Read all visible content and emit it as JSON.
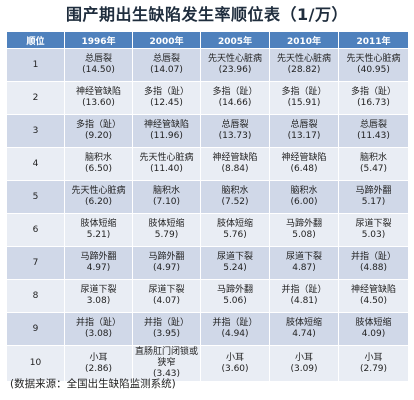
{
  "title": "围产期出生缺陷发生率顺位表（1/万）",
  "headers": [
    "顺位",
    "1996年",
    "2000年",
    "2005年",
    "2010年",
    "2011年"
  ],
  "rows": [
    {
      "rank": "1",
      "cells": [
        {
          "name": "总唇裂",
          "value": "(14.50)"
        },
        {
          "name": "总唇裂",
          "value": "(14.07)"
        },
        {
          "name": "先天性心脏病",
          "value": "(23.96)"
        },
        {
          "name": "先天性心脏病",
          "value": "(28.82)"
        },
        {
          "name": "先天性心脏病",
          "value": "(40.95)"
        }
      ]
    },
    {
      "rank": "2",
      "cells": [
        {
          "name": "神经管缺陷",
          "value": "(13.60)"
        },
        {
          "name": "多指（趾）",
          "value": "(12.45)"
        },
        {
          "name": "多指（趾）",
          "value": "(14.66)"
        },
        {
          "name": "多指（趾）",
          "value": "(15.91)"
        },
        {
          "name": "多指（趾）",
          "value": "(16.73)"
        }
      ]
    },
    {
      "rank": "3",
      "cells": [
        {
          "name": "多指（趾）",
          "value": "(9.20)"
        },
        {
          "name": "神经管缺陷",
          "value": "(11.96)"
        },
        {
          "name": "总唇裂",
          "value": "(13.73)"
        },
        {
          "name": "总唇裂",
          "value": "(13.17)"
        },
        {
          "name": "总唇裂",
          "value": "(11.43)"
        }
      ]
    },
    {
      "rank": "4",
      "cells": [
        {
          "name": "脑积水",
          "value": "(6.50)"
        },
        {
          "name": "先天性心脏病",
          "value": "(11.40)"
        },
        {
          "name": "神经管缺陷",
          "value": "(8.84)"
        },
        {
          "name": "神经管缺陷",
          "value": "(6.48)"
        },
        {
          "name": "脑积水",
          "value": "(5.47)"
        }
      ]
    },
    {
      "rank": "5",
      "cells": [
        {
          "name": "先天性心脏病",
          "value": "(6.20)"
        },
        {
          "name": "脑积水",
          "value": "(7.10)"
        },
        {
          "name": "脑积水",
          "value": "(7.52)"
        },
        {
          "name": "脑积水",
          "value": "(6.00)"
        },
        {
          "name": "马蹄外翻",
          "value": "5.17)"
        }
      ]
    },
    {
      "rank": "6",
      "cells": [
        {
          "name": "肢体短缩",
          "value": "5.21)"
        },
        {
          "name": "肢体短缩",
          "value": "5.79)"
        },
        {
          "name": "肢体短缩",
          "value": "5.76)"
        },
        {
          "name": "马蹄外翻",
          "value": "5.08)"
        },
        {
          "name": "尿道下裂",
          "value": "5.03)"
        }
      ]
    },
    {
      "rank": "7",
      "cells": [
        {
          "name": "马蹄外翻",
          "value": "4.97)"
        },
        {
          "name": "马蹄外翻",
          "value": "(4.97)"
        },
        {
          "name": "尿道下裂",
          "value": "5.24)"
        },
        {
          "name": "尿道下裂",
          "value": "4.87)"
        },
        {
          "name": "并指（趾）",
          "value": "(4.88)"
        }
      ]
    },
    {
      "rank": "8",
      "cells": [
        {
          "name": "尿道下裂",
          "value": "3.08)"
        },
        {
          "name": "尿道下裂",
          "value": "(4.07)"
        },
        {
          "name": "马蹄外翻",
          "value": "5.06)"
        },
        {
          "name": "并指（趾）",
          "value": "(4.81)"
        },
        {
          "name": "神经管缺陷",
          "value": "(4.50)"
        }
      ]
    },
    {
      "rank": "9",
      "cells": [
        {
          "name": "并指（趾）",
          "value": "(3.08)"
        },
        {
          "name": "并指（趾）",
          "value": "(3.95)"
        },
        {
          "name": "并指（趾）",
          "value": "(4.94)"
        },
        {
          "name": "肢体短缩",
          "value": "4.74)"
        },
        {
          "name": "肢体短缩",
          "value": "4.09)"
        }
      ]
    },
    {
      "rank": "10",
      "cells": [
        {
          "name": "小耳",
          "value": "(2.86)"
        },
        {
          "name": "直肠肛门闭锁或狭窄",
          "value": "(3.43)"
        },
        {
          "name": "小耳",
          "value": "(3.60)"
        },
        {
          "name": "小耳",
          "value": "(3.09)"
        },
        {
          "name": "小耳",
          "value": "(2.79)"
        }
      ]
    }
  ],
  "source": "(数据来源：全国出生缺陷监测系统)"
}
